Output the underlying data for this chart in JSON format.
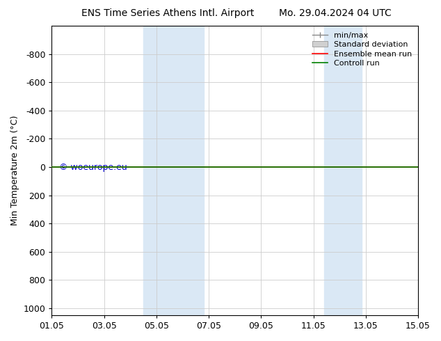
{
  "title_left": "ENS Time Series Athens Intl. Airport",
  "title_right": "Mo. 29.04.2024 04 UTC",
  "ylabel": "Min Temperature 2m (°C)",
  "ylim_bottom": 1050,
  "ylim_top": -1000,
  "yticks": [
    -800,
    -600,
    -400,
    -200,
    0,
    200,
    400,
    600,
    800,
    1000
  ],
  "xtick_labels": [
    "01.05",
    "03.05",
    "05.05",
    "07.05",
    "09.05",
    "11.05",
    "13.05",
    "15.05"
  ],
  "xtick_positions": [
    0,
    2,
    4,
    6,
    8,
    10,
    12,
    14
  ],
  "xlim": [
    0,
    14
  ],
  "blue_shade_regions": [
    {
      "start": 3.5,
      "end": 5.8
    },
    {
      "start": 10.4,
      "end": 11.85
    }
  ],
  "blue_shade_color": "#dae8f5",
  "green_line_y": 0,
  "red_line_y": 0,
  "green_line_color": "#008000",
  "red_line_color": "#ff0000",
  "copyright_text": "© woeurope.eu",
  "copyright_color": "#0000cc",
  "legend_labels": [
    "min/max",
    "Standard deviation",
    "Ensemble mean run",
    "Controll run"
  ],
  "bg_color": "#ffffff",
  "plot_bg_color": "#ffffff",
  "title_fontsize": 10,
  "axis_fontsize": 9,
  "tick_fontsize": 9,
  "legend_fontsize": 8
}
